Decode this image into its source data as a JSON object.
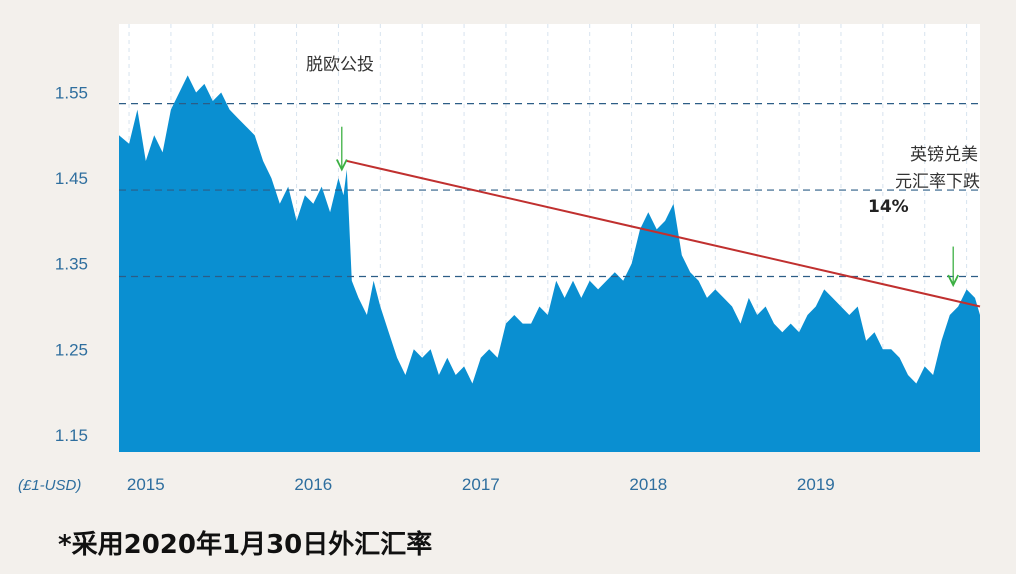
{
  "chart_data": {
    "type": "area",
    "title": "",
    "xlabel": "",
    "ylabel": "",
    "unit_label": "(£1-USD)",
    "ylim": [
      1.13,
      1.63
    ],
    "yticks": [
      "1.55",
      "1.45",
      "1.35",
      "1.25",
      "1.15"
    ],
    "xtick_labels": [
      "2015",
      "2016",
      "2017",
      "2018",
      "2019"
    ],
    "xlim": [
      2014.94,
      2020.08
    ],
    "grid_levels": [
      1.537,
      1.436,
      1.335
    ],
    "fill_color": "#0a8fd1",
    "trend_color": "#c0302f",
    "arrow_color": "#3cb043",
    "x": [
      2014.94,
      2015.0,
      2015.05,
      2015.1,
      2015.15,
      2015.2,
      2015.25,
      2015.3,
      2015.35,
      2015.4,
      2015.45,
      2015.5,
      2015.55,
      2015.6,
      2015.65,
      2015.7,
      2015.75,
      2015.8,
      2015.85,
      2015.9,
      2015.95,
      2016.0,
      2016.05,
      2016.1,
      2016.15,
      2016.2,
      2016.25,
      2016.28,
      2016.3,
      2016.33,
      2016.37,
      2016.42,
      2016.46,
      2016.5,
      2016.55,
      2016.6,
      2016.65,
      2016.7,
      2016.75,
      2016.8,
      2016.85,
      2016.9,
      2016.95,
      2017.0,
      2017.05,
      2017.1,
      2017.15,
      2017.2,
      2017.25,
      2017.3,
      2017.35,
      2017.4,
      2017.45,
      2017.5,
      2017.55,
      2017.6,
      2017.65,
      2017.7,
      2017.75,
      2017.8,
      2017.85,
      2017.9,
      2017.95,
      2018.0,
      2018.05,
      2018.1,
      2018.15,
      2018.2,
      2018.25,
      2018.3,
      2018.35,
      2018.4,
      2018.45,
      2018.5,
      2018.55,
      2018.6,
      2018.65,
      2018.7,
      2018.75,
      2018.8,
      2018.85,
      2018.9,
      2018.95,
      2019.0,
      2019.05,
      2019.1,
      2019.15,
      2019.2,
      2019.25,
      2019.3,
      2019.35,
      2019.4,
      2019.45,
      2019.5,
      2019.55,
      2019.6,
      2019.65,
      2019.7,
      2019.75,
      2019.8,
      2019.85,
      2019.9,
      2019.95,
      2020.0,
      2020.05,
      2020.08
    ],
    "values": [
      1.5,
      1.49,
      1.53,
      1.47,
      1.5,
      1.48,
      1.53,
      1.55,
      1.57,
      1.55,
      1.56,
      1.54,
      1.55,
      1.53,
      1.52,
      1.51,
      1.5,
      1.47,
      1.45,
      1.42,
      1.44,
      1.4,
      1.43,
      1.42,
      1.44,
      1.41,
      1.45,
      1.43,
      1.46,
      1.33,
      1.31,
      1.29,
      1.33,
      1.3,
      1.27,
      1.24,
      1.22,
      1.25,
      1.24,
      1.25,
      1.22,
      1.24,
      1.22,
      1.23,
      1.21,
      1.24,
      1.25,
      1.24,
      1.28,
      1.29,
      1.28,
      1.28,
      1.3,
      1.29,
      1.33,
      1.31,
      1.33,
      1.31,
      1.33,
      1.32,
      1.33,
      1.34,
      1.33,
      1.35,
      1.39,
      1.41,
      1.39,
      1.4,
      1.42,
      1.36,
      1.34,
      1.33,
      1.31,
      1.32,
      1.31,
      1.3,
      1.28,
      1.31,
      1.29,
      1.3,
      1.28,
      1.27,
      1.28,
      1.27,
      1.29,
      1.3,
      1.32,
      1.31,
      1.3,
      1.29,
      1.3,
      1.26,
      1.27,
      1.25,
      1.25,
      1.24,
      1.22,
      1.21,
      1.23,
      1.22,
      1.26,
      1.29,
      1.3,
      1.32,
      1.31,
      1.29
    ],
    "trend_line": [
      [
        2016.3,
        1.47
      ],
      [
        2020.08,
        1.3
      ]
    ],
    "annotations": [
      {
        "text": "脱欧公投",
        "x": 2016.3
      },
      {
        "text": "英镑兑美",
        "x": 2019.9
      },
      {
        "text": "元汇率下跌",
        "x": 2019.9
      },
      {
        "text": "14%",
        "x": 2019.9
      }
    ],
    "arrows": [
      {
        "x": 2016.27,
        "from": 1.51,
        "to": 1.46
      },
      {
        "x": 2019.92,
        "from": 1.37,
        "to": 1.325
      }
    ]
  },
  "footnote_star": "*",
  "footnote": "采用2020年1月30日外汇汇率"
}
